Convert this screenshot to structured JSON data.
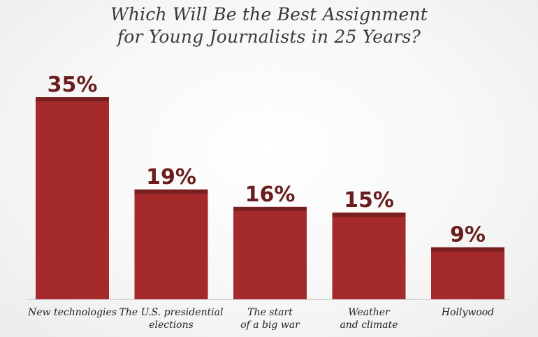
{
  "chart_data": {
    "type": "bar",
    "title": "Which Will Be the Best Assignment for Young Journalists in 25 Years?",
    "title_lines": [
      "Which Will Be the Best Assignment",
      "for Young Journalists in 25 Years?"
    ],
    "categories": [
      "New technologies",
      "The U.S. presidential elections",
      "The start of a big war",
      "Weather and climate",
      "Hollywood"
    ],
    "category_lines": [
      [
        "New technologies"
      ],
      [
        "The U.S. presidential",
        "elections"
      ],
      [
        "The start",
        "of a big war"
      ],
      [
        "Weather",
        "and climate"
      ],
      [
        "Hollywood"
      ]
    ],
    "values": [
      35,
      19,
      16,
      15,
      9
    ],
    "value_labels": [
      "35%",
      "19%",
      "16%",
      "15%",
      "9%"
    ],
    "ylim": [
      0,
      35
    ],
    "grid": false,
    "legend": "none",
    "colors": {
      "bar": "#a52a2c",
      "bar_top": "#7a1f1f",
      "label": "#6b1c1c",
      "baseline": "#d0d0d0"
    }
  }
}
